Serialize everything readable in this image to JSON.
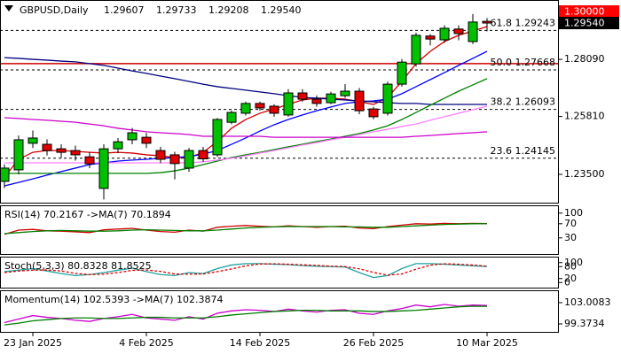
{
  "chart_data": [
    {
      "type": "candlestick",
      "title": "GBPUSD,Daily",
      "quote": {
        "open": 1.29607,
        "high": 1.29733,
        "low": 1.29208,
        "close": {
          "value": 1.2954,
          "label": "1.29540"
        }
      },
      "categories": [
        null,
        null,
        "23 Jan 2025",
        null,
        null,
        null,
        null,
        null,
        null,
        null,
        "4 Feb 2025",
        null,
        null,
        null,
        null,
        null,
        null,
        null,
        "14 Feb 2025",
        null,
        null,
        null,
        null,
        null,
        null,
        null,
        "26 Feb 2025",
        null,
        null,
        null,
        null,
        null,
        null,
        null,
        "10 Mar 2025"
      ],
      "open": [
        1.2322,
        1.2368,
        1.2474,
        1.247,
        1.2452,
        1.2445,
        1.242,
        1.2294,
        1.2452,
        1.2488,
        1.2498,
        1.2445,
        1.2428,
        1.2375,
        1.2445,
        1.2428,
        1.2558,
        1.2594,
        1.2633,
        1.2622,
        1.2587,
        1.2675,
        1.265,
        1.2636,
        1.2664,
        1.2682,
        1.2611,
        1.2594,
        1.271,
        1.2791,
        1.2902,
        1.2887,
        1.293,
        1.288,
        1.29607
      ],
      "high": [
        1.239,
        1.2505,
        1.2525,
        1.249,
        1.247,
        1.2465,
        1.244,
        1.247,
        1.2495,
        1.2535,
        1.2515,
        1.246,
        1.244,
        1.2455,
        1.246,
        1.2575,
        1.2605,
        1.264,
        1.264,
        1.263,
        1.269,
        1.269,
        1.2665,
        1.268,
        1.271,
        1.2695,
        1.262,
        1.272,
        1.281,
        1.2915,
        1.291,
        1.2945,
        1.2945,
        1.299,
        1.29733
      ],
      "low": [
        1.2295,
        1.235,
        1.2455,
        1.2425,
        1.2415,
        1.2405,
        1.2375,
        1.225,
        1.2435,
        1.247,
        1.2455,
        1.2395,
        1.233,
        1.236,
        1.24,
        1.242,
        1.255,
        1.2585,
        1.2605,
        1.258,
        1.258,
        1.264,
        1.262,
        1.263,
        1.2655,
        1.259,
        1.257,
        1.2585,
        1.27,
        1.278,
        1.2865,
        1.2875,
        1.2885,
        1.287,
        1.29208
      ],
      "close": [
        1.2375,
        1.2488,
        1.2495,
        1.2445,
        1.2438,
        1.2428,
        1.2392,
        1.2452,
        1.248,
        1.2516,
        1.2474,
        1.241,
        1.2393,
        1.2445,
        1.2412,
        1.2569,
        1.2597,
        1.2633,
        1.2615,
        1.2594,
        1.2675,
        1.265,
        1.2633,
        1.2671,
        1.2682,
        1.2604,
        1.258,
        1.271,
        1.2798,
        1.2905,
        1.289,
        1.2933,
        1.2912,
        1.2958,
        1.2954
      ],
      "up_color": "#00c000",
      "down_color": "#e00000",
      "series": [
        {
          "color": "#d00000",
          "values": [
            1.2339,
            1.241,
            1.2438,
            1.2445,
            1.2445,
            1.2442,
            1.2438,
            1.2435,
            1.2438,
            1.2435,
            1.2428,
            1.2424,
            1.2417,
            1.2417,
            1.2438,
            1.2481,
            1.2534,
            1.2569,
            1.2594,
            1.2611,
            1.2629,
            1.2647,
            1.2654,
            1.2654,
            1.265,
            1.264,
            1.2629,
            1.2657,
            1.2721,
            1.2792,
            1.2841,
            1.288,
            1.2905,
            1.2922,
            1.294
          ]
        },
        {
          "color": "#0000ff",
          "values": [
            1.2304,
            1.2318,
            1.2332,
            1.2347,
            1.2361,
            1.2375,
            1.2389,
            1.2396,
            1.2403,
            1.2407,
            1.241,
            1.2414,
            1.2417,
            1.2421,
            1.2431,
            1.2445,
            1.247,
            1.2495,
            1.2523,
            1.2548,
            1.2569,
            1.2587,
            1.2604,
            1.2619,
            1.2633,
            1.264,
            1.2643,
            1.265,
            1.2672,
            1.27,
            1.2728,
            1.2756,
            1.2785,
            1.2813,
            1.2841
          ]
        },
        {
          "color": "#000080",
          "values": [
            1.2816,
            1.2813,
            1.2809,
            1.2806,
            1.2802,
            1.2799,
            1.2792,
            1.2785,
            1.2774,
            1.2763,
            1.2753,
            1.2742,
            1.2732,
            1.2721,
            1.271,
            1.27,
            1.2693,
            1.2686,
            1.2679,
            1.2672,
            1.2664,
            1.2657,
            1.2654,
            1.265,
            1.2647,
            1.2643,
            1.264,
            1.2636,
            1.2633,
            1.2633,
            1.2629,
            1.2629,
            1.2629,
            1.2629,
            1.2629
          ]
        },
        {
          "color": "#008000",
          "values": [
            1.2354,
            1.2354,
            1.2354,
            1.2354,
            1.2354,
            1.2354,
            1.2354,
            1.2354,
            1.2354,
            1.2354,
            1.2354,
            1.2357,
            1.2364,
            1.2375,
            1.2389,
            1.2403,
            1.2417,
            1.2428,
            1.2438,
            1.2449,
            1.246,
            1.247,
            1.2481,
            1.2491,
            1.2502,
            1.2513,
            1.2527,
            1.2544,
            1.2569,
            1.2597,
            1.2626,
            1.2654,
            1.2682,
            1.2707,
            1.2732
          ]
        },
        {
          "color": "#ff80ff",
          "values": [
            1.2396,
            1.2396,
            1.2396,
            1.2396,
            1.2396,
            1.2396,
            1.2396,
            1.2396,
            1.2396,
            1.2396,
            1.2396,
            1.2396,
            1.2396,
            1.2396,
            1.24,
            1.2407,
            1.2414,
            1.2424,
            1.2435,
            1.2445,
            1.2456,
            1.2467,
            1.2477,
            1.2488,
            1.2498,
            1.2509,
            1.252,
            1.253,
            1.2541,
            1.2551,
            1.2566,
            1.258,
            1.2594,
            1.2608,
            1.2622
          ]
        },
        {
          "color": "#cc00cc",
          "values": [
            1.2576,
            1.2573,
            1.2569,
            1.2566,
            1.2562,
            1.2558,
            1.2551,
            1.2544,
            1.2534,
            1.2527,
            1.252,
            1.2516,
            1.2513,
            1.2509,
            1.2502,
            1.2502,
            1.2502,
            1.2502,
            1.2502,
            1.2498,
            1.2498,
            1.2498,
            1.2498,
            1.2498,
            1.2498,
            1.2498,
            1.2498,
            1.2498,
            1.2498,
            1.2502,
            1.2505,
            1.2509,
            1.2513,
            1.2516,
            1.252
          ]
        }
      ],
      "levels": [
        {
          "value": 1.29243,
          "label": "61.8 1.29243"
        },
        {
          "value": 1.27668,
          "label": "50.0 1.27668"
        },
        {
          "value": 1.26093,
          "label": "38.2 1.26093"
        },
        {
          "value": 1.24145,
          "label": "23.6 1.24145"
        }
      ],
      "hlines": [
        {
          "value": 1.2792,
          "color": "#cc0000"
        }
      ],
      "price_tags": [
        {
          "value": 1.3,
          "label": "1.30000",
          "color": "#ff0000"
        },
        {
          "value": 1.2954,
          "label": "1.29540",
          "color": "#000000"
        }
      ],
      "ylim": [
        1.22335,
        1.30459
      ],
      "yticks": [
        {
          "value": 1.2809,
          "label": "1.28090"
        },
        {
          "value": 1.2581,
          "label": "1.25810"
        },
        {
          "value": 1.235,
          "label": "1.23500"
        }
      ]
    },
    {
      "type": "line",
      "title": "RSI(14) 70.2167 ->MA(7) 70.1894",
      "series": [
        {
          "color": "#d00000",
          "values": [
            40,
            52,
            54,
            50,
            49,
            47,
            45,
            53,
            55,
            57,
            52,
            48,
            46,
            52,
            49,
            60,
            63,
            65,
            63,
            61,
            64,
            62,
            60,
            62,
            63,
            58,
            56,
            62,
            66,
            70,
            69,
            71,
            70,
            71,
            70.2167
          ]
        },
        {
          "color": "#008000",
          "values": [
            42,
            45,
            48,
            50,
            51,
            50,
            49,
            49,
            50,
            52,
            53,
            52,
            51,
            50,
            50,
            52,
            55,
            58,
            60,
            61,
            62,
            62,
            62,
            62,
            61,
            61,
            60,
            60,
            62,
            64,
            66,
            68,
            69,
            70,
            70.1894
          ]
        }
      ],
      "ylim": [
        -18,
        122
      ],
      "yticks": [
        100,
        70,
        30
      ]
    },
    {
      "type": "line",
      "title": "Stoch(5,3,3) 80.8328 81.8525",
      "series": [
        {
          "color": "#20a0a0",
          "values": [
            55,
            62,
            70,
            58,
            45,
            35,
            40,
            50,
            62,
            72,
            55,
            40,
            35,
            50,
            45,
            70,
            88,
            95,
            95,
            92,
            90,
            85,
            82,
            80,
            78,
            50,
            25,
            35,
            70,
            95,
            95,
            92,
            88,
            84,
            80.8328
          ]
        },
        {
          "color": "#e00000",
          "style": "dashed",
          "values": [
            50,
            58,
            62,
            63,
            58,
            46,
            40,
            42,
            50,
            61,
            63,
            56,
            43,
            42,
            43,
            55,
            68,
            84,
            93,
            94,
            92,
            89,
            86,
            82,
            80,
            69,
            51,
            37,
            43,
            67,
            87,
            94,
            92,
            88,
            81.8525
          ]
        }
      ],
      "ylim": [
        -30,
        130
      ],
      "yticks": [
        100,
        80,
        20,
        0
      ]
    },
    {
      "type": "line",
      "title": "Momentum(14) 102.5393 ->MA(7) 102.3874",
      "series": [
        {
          "color": "#cc00cc",
          "values": [
            99.6,
            100.2,
            100.8,
            100.5,
            100.3,
            100.0,
            99.8,
            100.3,
            100.6,
            101.0,
            100.4,
            100.2,
            100.0,
            100.6,
            100.2,
            101.2,
            101.6,
            101.8,
            101.7,
            101.5,
            101.9,
            101.6,
            101.4,
            101.7,
            101.8,
            101.2,
            101.0,
            101.6,
            102.0,
            102.6,
            102.3,
            102.7,
            102.4,
            102.6,
            102.5393
          ]
        },
        {
          "color": "#008000",
          "values": [
            99.2,
            99.5,
            99.9,
            100.1,
            100.3,
            100.4,
            100.4,
            100.3,
            100.3,
            100.4,
            100.5,
            100.5,
            100.4,
            100.4,
            100.4,
            100.6,
            100.9,
            101.1,
            101.3,
            101.5,
            101.6,
            101.7,
            101.7,
            101.6,
            101.6,
            101.6,
            101.5,
            101.5,
            101.6,
            101.7,
            101.9,
            102.1,
            102.3,
            102.4,
            102.3874
          ]
        }
      ],
      "ylim": [
        97.859,
        105.1286
      ],
      "yticks": [
        103.0083,
        99.3734
      ]
    }
  ]
}
